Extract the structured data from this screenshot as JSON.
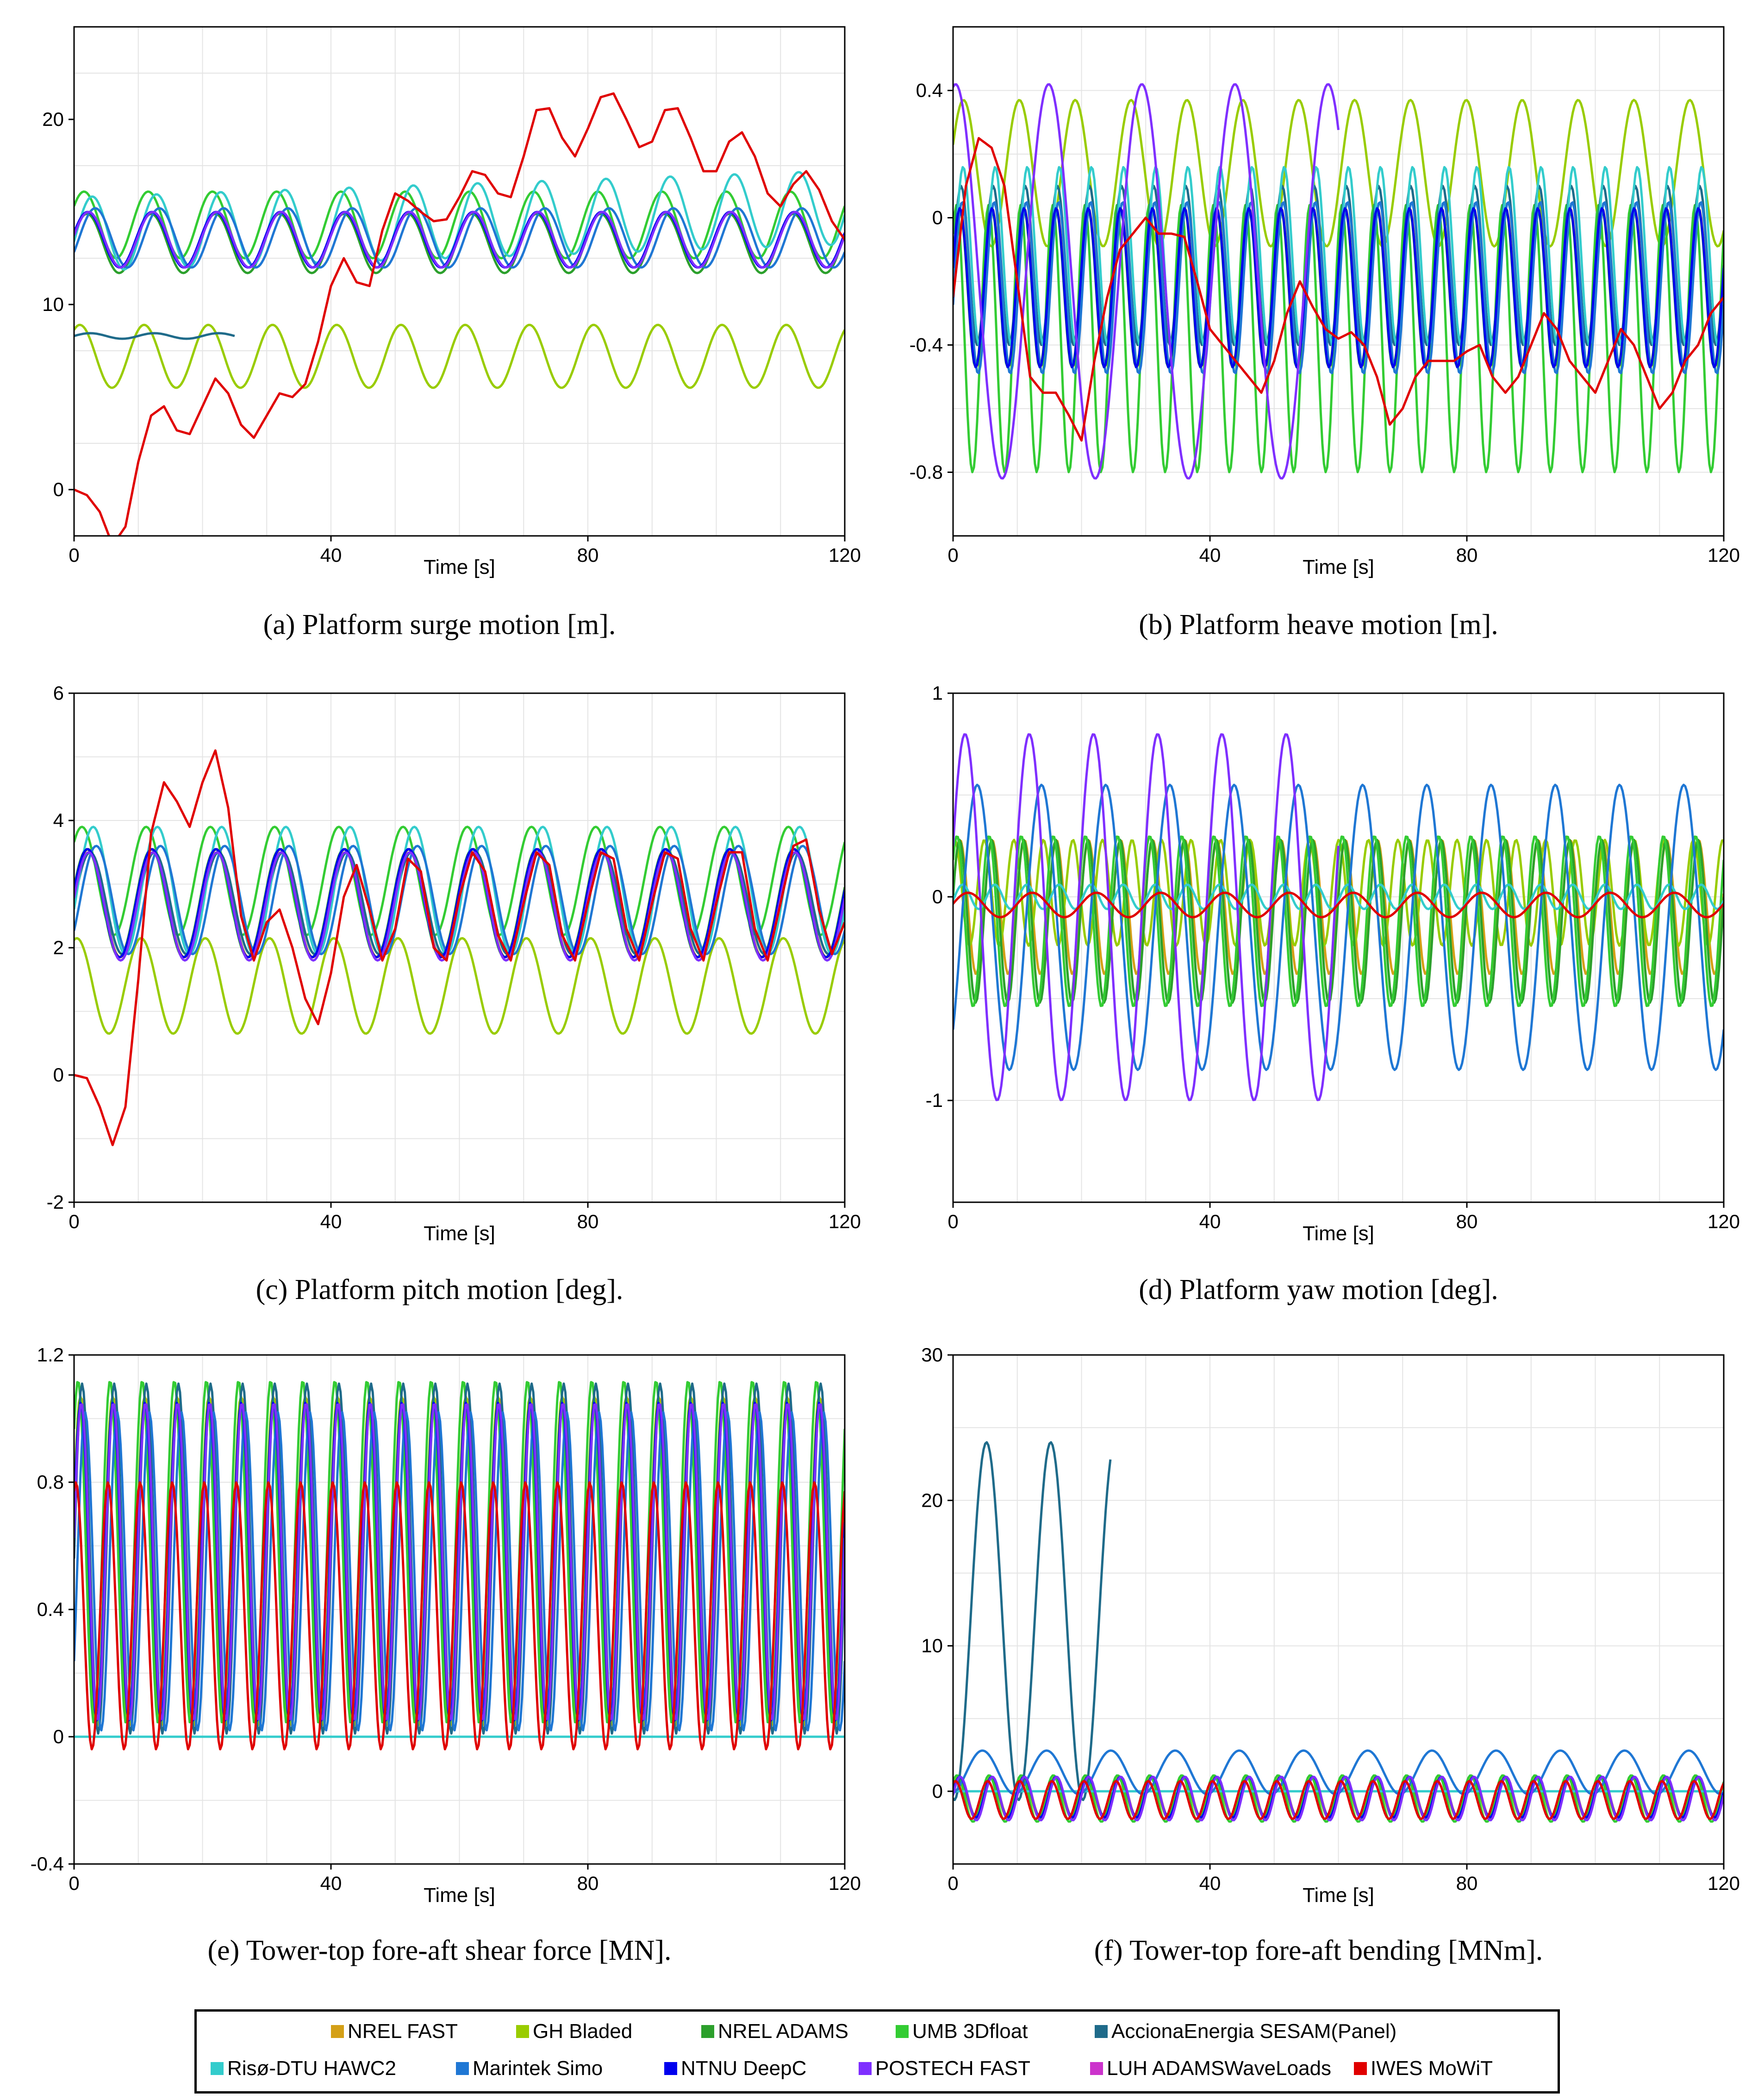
{
  "figure": {
    "xlabel": "Time [s]",
    "colors": {
      "nrel_fast": "#d4a017",
      "gh_bladed": "#99cc00",
      "nrel_adams": "#2ca02c",
      "umb_3dfloat": "#33cc33",
      "acciona": "#1f6b8a",
      "riso": "#33cccc",
      "marintek": "#1f77d4",
      "ntnu": "#0000ee",
      "postech": "#7f2fff",
      "luh": "#cc33cc",
      "iwes": "#e00000"
    }
  },
  "panels": [
    {
      "id": "a",
      "caption": "(a)  Platform surge motion [m]."
    },
    {
      "id": "b",
      "caption": "(b)  Platform heave motion [m]."
    },
    {
      "id": "c",
      "caption": "(c)  Platform pitch motion [deg]."
    },
    {
      "id": "d",
      "caption": "(d)  Platform yaw motion [deg]."
    },
    {
      "id": "e",
      "caption": "(e)  Tower-top fore-aft shear force [MN]."
    },
    {
      "id": "f",
      "caption": "(f)  Tower-top fore-aft bending [MNm]."
    }
  ],
  "legend": {
    "items": [
      {
        "label": "NREL FAST",
        "color": "#d4a017"
      },
      {
        "label": "GH Bladed",
        "color": "#99cc00"
      },
      {
        "label": "NREL ADAMS",
        "color": "#2ca02c"
      },
      {
        "label": "UMB 3Dfloat",
        "color": "#33cc33"
      },
      {
        "label": "AccionaEnergia SESAM(Panel)",
        "color": "#1f6b8a"
      },
      {
        "label": "Risø-DTU HAWC2",
        "color": "#33cccc"
      },
      {
        "label": "Marintek Simo",
        "color": "#1f77d4"
      },
      {
        "label": "NTNU DeepC",
        "color": "#0000ee"
      },
      {
        "label": "POSTECH FAST",
        "color": "#7f2fff"
      },
      {
        "label": "LUH ADAMSWaveLoads",
        "color": "#cc33cc"
      },
      {
        "label": "IWES MoWiT",
        "color": "#e00000"
      }
    ]
  },
  "chart_data": [
    {
      "type": "line",
      "title": "Platform surge motion [m].",
      "xlabel": "Time [s]",
      "ylabel": "",
      "xlim": [
        0,
        120
      ],
      "ylim": [
        -2.5,
        25
      ],
      "xticks": [
        0,
        40,
        80,
        120
      ],
      "yticks": [
        0,
        10,
        20
      ],
      "series": [
        {
          "name": "NREL FAST",
          "color": "#d4a017",
          "tend": 120,
          "mean": 13.5,
          "amp": 1.5,
          "period": 10,
          "phase": 0.2
        },
        {
          "name": "GH Bladed",
          "color": "#99cc00",
          "tend": 120,
          "mean": 7.2,
          "amp": 1.7,
          "period": 10,
          "phase": 1.0
        },
        {
          "name": "NREL ADAMS",
          "color": "#2ca02c",
          "tend": 120,
          "mean": 13.3,
          "amp": 1.6,
          "period": 10,
          "phase": 0.3
        },
        {
          "name": "UMB 3Dfloat",
          "color": "#33cc33",
          "tend": 120,
          "mean": 14.3,
          "amp": 1.8,
          "period": 10,
          "phase": 0.6
        },
        {
          "name": "AccionaEnergia SESAM(Panel)",
          "color": "#1f6b8a",
          "tend": 25,
          "mean": 8.3,
          "amp": 0.15,
          "period": 10,
          "phase": 0.0
        },
        {
          "name": "Risø-DTU HAWC2",
          "color": "#33cccc",
          "tend": 120,
          "mean": 13.8,
          "amp": 2.0,
          "period": 10,
          "phase": -0.2,
          "drift": 0.012
        },
        {
          "name": "Marintek Simo",
          "color": "#1f77d4",
          "tend": 120,
          "mean": 13.6,
          "amp": 1.6,
          "period": 10,
          "phase": -0.5
        },
        {
          "name": "NTNU DeepC",
          "color": "#0000ee",
          "tend": 120,
          "mean": 13.5,
          "amp": 1.5,
          "period": 10,
          "phase": 0.25
        },
        {
          "name": "POSTECH FAST",
          "color": "#7f2fff",
          "tend": 120,
          "mean": 13.5,
          "amp": 1.5,
          "period": 10,
          "phase": 0.15
        },
        {
          "name": "IWES MoWiT",
          "color": "#e00000",
          "tend": 120,
          "curve": "surge_iwes"
        }
      ]
    },
    {
      "type": "line",
      "title": "Platform heave motion [m].",
      "xlabel": "Time [s]",
      "ylabel": "",
      "xlim": [
        0,
        120
      ],
      "ylim": [
        -1.0,
        0.6
      ],
      "xticks": [
        0,
        40,
        80,
        120
      ],
      "yticks": [
        -0.8,
        -0.4,
        0.0,
        0.4
      ],
      "series": [
        {
          "name": "NREL FAST",
          "color": "#d4a017",
          "tend": 120,
          "mean": -0.22,
          "amp": 0.25,
          "period": 5,
          "phase": 0.2
        },
        {
          "name": "GH Bladed",
          "color": "#99cc00",
          "tend": 120,
          "mean": 0.14,
          "amp": 0.23,
          "period": 8.7,
          "phase": 0.4
        },
        {
          "name": "NREL ADAMS",
          "color": "#2ca02c",
          "tend": 120,
          "mean": -0.22,
          "amp": 0.25,
          "period": 5,
          "phase": 0.3
        },
        {
          "name": "UMB 3Dfloat",
          "color": "#33cc33",
          "tend": 120,
          "mean": -0.38,
          "amp": 0.42,
          "period": 5,
          "phase": 0.9
        },
        {
          "name": "AccionaEnergia SESAM(Panel)",
          "color": "#1f6b8a",
          "tend": 120,
          "mean": -0.15,
          "amp": 0.25,
          "period": 5,
          "phase": 0.0
        },
        {
          "name": "Risø-DTU HAWC2",
          "color": "#33cccc",
          "tend": 120,
          "mean": -0.12,
          "amp": 0.28,
          "period": 5,
          "phase": -0.4
        },
        {
          "name": "Marintek Simo",
          "color": "#1f77d4",
          "tend": 120,
          "mean": -0.22,
          "amp": 0.27,
          "period": 5,
          "phase": -0.2
        },
        {
          "name": "NTNU DeepC",
          "color": "#0000ee",
          "tend": 120,
          "mean": -0.22,
          "amp": 0.25,
          "period": 5,
          "phase": 0.25
        },
        {
          "name": "POSTECH FAST",
          "color": "#7f2fff",
          "tend": 60,
          "mean": -0.2,
          "amp": 0.62,
          "period": 14.5,
          "phase": 1.4
        },
        {
          "name": "IWES MoWiT",
          "color": "#e00000",
          "tend": 120,
          "curve": "heave_iwes"
        }
      ]
    },
    {
      "type": "line",
      "title": "Platform pitch motion [deg].",
      "xlabel": "Time [s]",
      "ylabel": "",
      "xlim": [
        0,
        120
      ],
      "ylim": [
        -2,
        6
      ],
      "xticks": [
        0,
        40,
        80,
        120
      ],
      "yticks": [
        -2,
        0,
        2,
        4,
        6
      ],
      "series": [
        {
          "name": "NREL FAST",
          "color": "#d4a017",
          "tend": 120,
          "mean": 2.7,
          "amp": 0.85,
          "period": 10,
          "phase": 0.2
        },
        {
          "name": "GH Bladed",
          "color": "#99cc00",
          "tend": 120,
          "mean": 1.4,
          "amp": 0.75,
          "period": 10,
          "phase": 1.3
        },
        {
          "name": "NREL ADAMS",
          "color": "#2ca02c",
          "tend": 120,
          "mean": 2.7,
          "amp": 0.85,
          "period": 10,
          "phase": 0.3
        },
        {
          "name": "UMB 3Dfloat",
          "color": "#33cc33",
          "tend": 120,
          "mean": 3.05,
          "amp": 0.85,
          "period": 10,
          "phase": 0.8
        },
        {
          "name": "AccionaEnergia SESAM(Panel)",
          "color": "#1f6b8a",
          "tend": 120,
          "mean": 2.7,
          "amp": 0.8,
          "period": 10,
          "phase": 0.0
        },
        {
          "name": "Risø-DTU HAWC2",
          "color": "#33cccc",
          "tend": 120,
          "mean": 2.9,
          "amp": 1.0,
          "period": 10,
          "phase": -0.3
        },
        {
          "name": "Marintek Simo",
          "color": "#1f77d4",
          "tend": 120,
          "mean": 2.75,
          "amp": 0.85,
          "period": 10,
          "phase": -0.6
        },
        {
          "name": "NTNU DeepC",
          "color": "#0000ee",
          "tend": 120,
          "mean": 2.7,
          "amp": 0.85,
          "period": 10,
          "phase": 0.25
        },
        {
          "name": "POSTECH FAST",
          "color": "#7f2fff",
          "tend": 120,
          "mean": 2.65,
          "amp": 0.85,
          "period": 10,
          "phase": 0.15
        },
        {
          "name": "IWES MoWiT",
          "color": "#e00000",
          "tend": 120,
          "curve": "pitch_iwes"
        }
      ]
    },
    {
      "type": "line",
      "title": "Platform yaw motion [deg].",
      "xlabel": "Time [s]",
      "ylabel": "",
      "xlim": [
        0,
        120
      ],
      "ylim": [
        -1.5,
        1
      ],
      "xticks": [
        0,
        40,
        80,
        120
      ],
      "yticks": [
        -1,
        0,
        1
      ],
      "series": [
        {
          "name": "NREL FAST",
          "color": "#d4a017",
          "tend": 120,
          "mean": -0.05,
          "amp": 0.33,
          "period": 5,
          "phase": 0.2
        },
        {
          "name": "GH Bladed",
          "color": "#99cc00",
          "tend": 120,
          "mean": 0.02,
          "amp": 0.26,
          "period": 4.6,
          "phase": 1.2
        },
        {
          "name": "NREL ADAMS",
          "color": "#2ca02c",
          "tend": 120,
          "mean": -0.12,
          "amp": 0.4,
          "period": 5,
          "phase": 0.3
        },
        {
          "name": "UMB 3Dfloat",
          "color": "#33cc33",
          "tend": 120,
          "mean": -0.12,
          "amp": 0.42,
          "period": 5,
          "phase": 0.8
        },
        {
          "name": "Risø-DTU HAWC2",
          "color": "#33cccc",
          "tend": 120,
          "mean": 0.0,
          "amp": 0.06,
          "period": 5,
          "phase": -0.3
        },
        {
          "name": "Marintek Simo",
          "color": "#1f77d4",
          "tend": 120,
          "mean": -0.15,
          "amp": 0.7,
          "period": 10,
          "phase": -0.8
        },
        {
          "name": "POSTECH FAST",
          "color": "#7f2fff",
          "tend": 60,
          "mean": -0.1,
          "amp": 0.9,
          "period": 10,
          "phase": 0.4
        },
        {
          "name": "IWES MoWiT",
          "color": "#e00000",
          "tend": 120,
          "mean": -0.04,
          "amp": 0.06,
          "period": 10,
          "phase": 0.1
        }
      ]
    },
    {
      "type": "line",
      "title": "Tower-top fore-aft shear force [MN].",
      "xlabel": "Time [s]",
      "ylabel": "",
      "xlim": [
        0,
        120
      ],
      "ylim": [
        -0.4,
        1.2
      ],
      "xticks": [
        0,
        40,
        80,
        120
      ],
      "yticks": [
        -0.4,
        0.0,
        0.4,
        0.8,
        1.2
      ],
      "series": [
        {
          "name": "NREL FAST",
          "color": "#d4a017",
          "tend": 120,
          "mean": 0.55,
          "amp": 0.52,
          "period": 5,
          "phase": 0.2
        },
        {
          "name": "GH Bladed",
          "color": "#99cc00",
          "tend": 120,
          "mean": 0.55,
          "amp": 0.52,
          "period": 5,
          "phase": 0.35
        },
        {
          "name": "NREL ADAMS",
          "color": "#2ca02c",
          "tend": 120,
          "mean": 0.55,
          "amp": 0.5,
          "period": 5,
          "phase": 0.3
        },
        {
          "name": "UMB 3Dfloat",
          "color": "#33cc33",
          "tend": 120,
          "mean": 0.58,
          "amp": 0.54,
          "period": 5,
          "phase": 0.8
        },
        {
          "name": "AccionaEnergia SESAM(Panel)",
          "color": "#1f6b8a",
          "tend": 120,
          "mean": 0.56,
          "amp": 0.55,
          "period": 5,
          "phase": 0.0
        },
        {
          "name": "Risø-DTU HAWC2",
          "color": "#33cccc",
          "tend": 120,
          "mean": 0.0,
          "amp": 0.0,
          "period": 5,
          "phase": 0.0
        },
        {
          "name": "Marintek Simo",
          "color": "#1f77d4",
          "tend": 120,
          "mean": 0.52,
          "amp": 0.5,
          "period": 5,
          "phase": -0.6
        },
        {
          "name": "NTNU DeepC",
          "color": "#0000ee",
          "tend": 120,
          "mean": 0.55,
          "amp": 0.5,
          "period": 5,
          "phase": 0.25
        },
        {
          "name": "POSTECH FAST",
          "color": "#7f2fff",
          "tend": 120,
          "mean": 0.55,
          "amp": 0.5,
          "period": 5,
          "phase": 0.15
        },
        {
          "name": "IWES MoWiT",
          "color": "#e00000",
          "tend": 120,
          "mean": 0.38,
          "amp": 0.42,
          "period": 5,
          "phase": 1.2
        }
      ]
    },
    {
      "type": "line",
      "title": "Tower-top fore-aft bending [MNm].",
      "xlabel": "Time [s]",
      "ylabel": "",
      "xlim": [
        0,
        120
      ],
      "ylim": [
        -5,
        30
      ],
      "xticks": [
        0,
        40,
        80,
        120
      ],
      "yticks": [
        0,
        10,
        20,
        30
      ],
      "series": [
        {
          "name": "NREL FAST",
          "color": "#d4a017",
          "tend": 120,
          "mean": -0.4,
          "amp": 1.4,
          "period": 5,
          "phase": 0.2
        },
        {
          "name": "GH Bladed",
          "color": "#99cc00",
          "tend": 120,
          "mean": -0.4,
          "amp": 1.4,
          "period": 5,
          "phase": 0.4
        },
        {
          "name": "NREL ADAMS",
          "color": "#2ca02c",
          "tend": 120,
          "mean": -0.4,
          "amp": 1.4,
          "period": 5,
          "phase": 0.3
        },
        {
          "name": "UMB 3Dfloat",
          "color": "#33cc33",
          "tend": 120,
          "mean": -0.5,
          "amp": 1.6,
          "period": 5,
          "phase": 0.8
        },
        {
          "name": "AccionaEnergia SESAM(Panel)",
          "color": "#1f6b8a",
          "tend": 24.5,
          "mean": 11.7,
          "amp": 12.3,
          "period": 10,
          "phase": -1.7
        },
        {
          "name": "Risø-DTU HAWC2",
          "color": "#33cccc",
          "tend": 120,
          "mean": 0.0,
          "amp": 0.0,
          "period": 5,
          "phase": 0.0
        },
        {
          "name": "Marintek Simo",
          "color": "#1f77d4",
          "tend": 120,
          "mean": 1.3,
          "amp": 1.5,
          "period": 10,
          "phase": -1.3
        },
        {
          "name": "NTNU DeepC",
          "color": "#0000ee",
          "tend": 120,
          "mean": -0.4,
          "amp": 1.4,
          "period": 5,
          "phase": 0.25
        },
        {
          "name": "POSTECH FAST",
          "color": "#7f2fff",
          "tend": 120,
          "mean": -0.5,
          "amp": 1.5,
          "period": 5,
          "phase": 0.15
        },
        {
          "name": "IWES MoWiT",
          "color": "#e00000",
          "tend": 120,
          "mean": -0.6,
          "amp": 1.3,
          "period": 5,
          "phase": 1.1
        }
      ]
    }
  ]
}
